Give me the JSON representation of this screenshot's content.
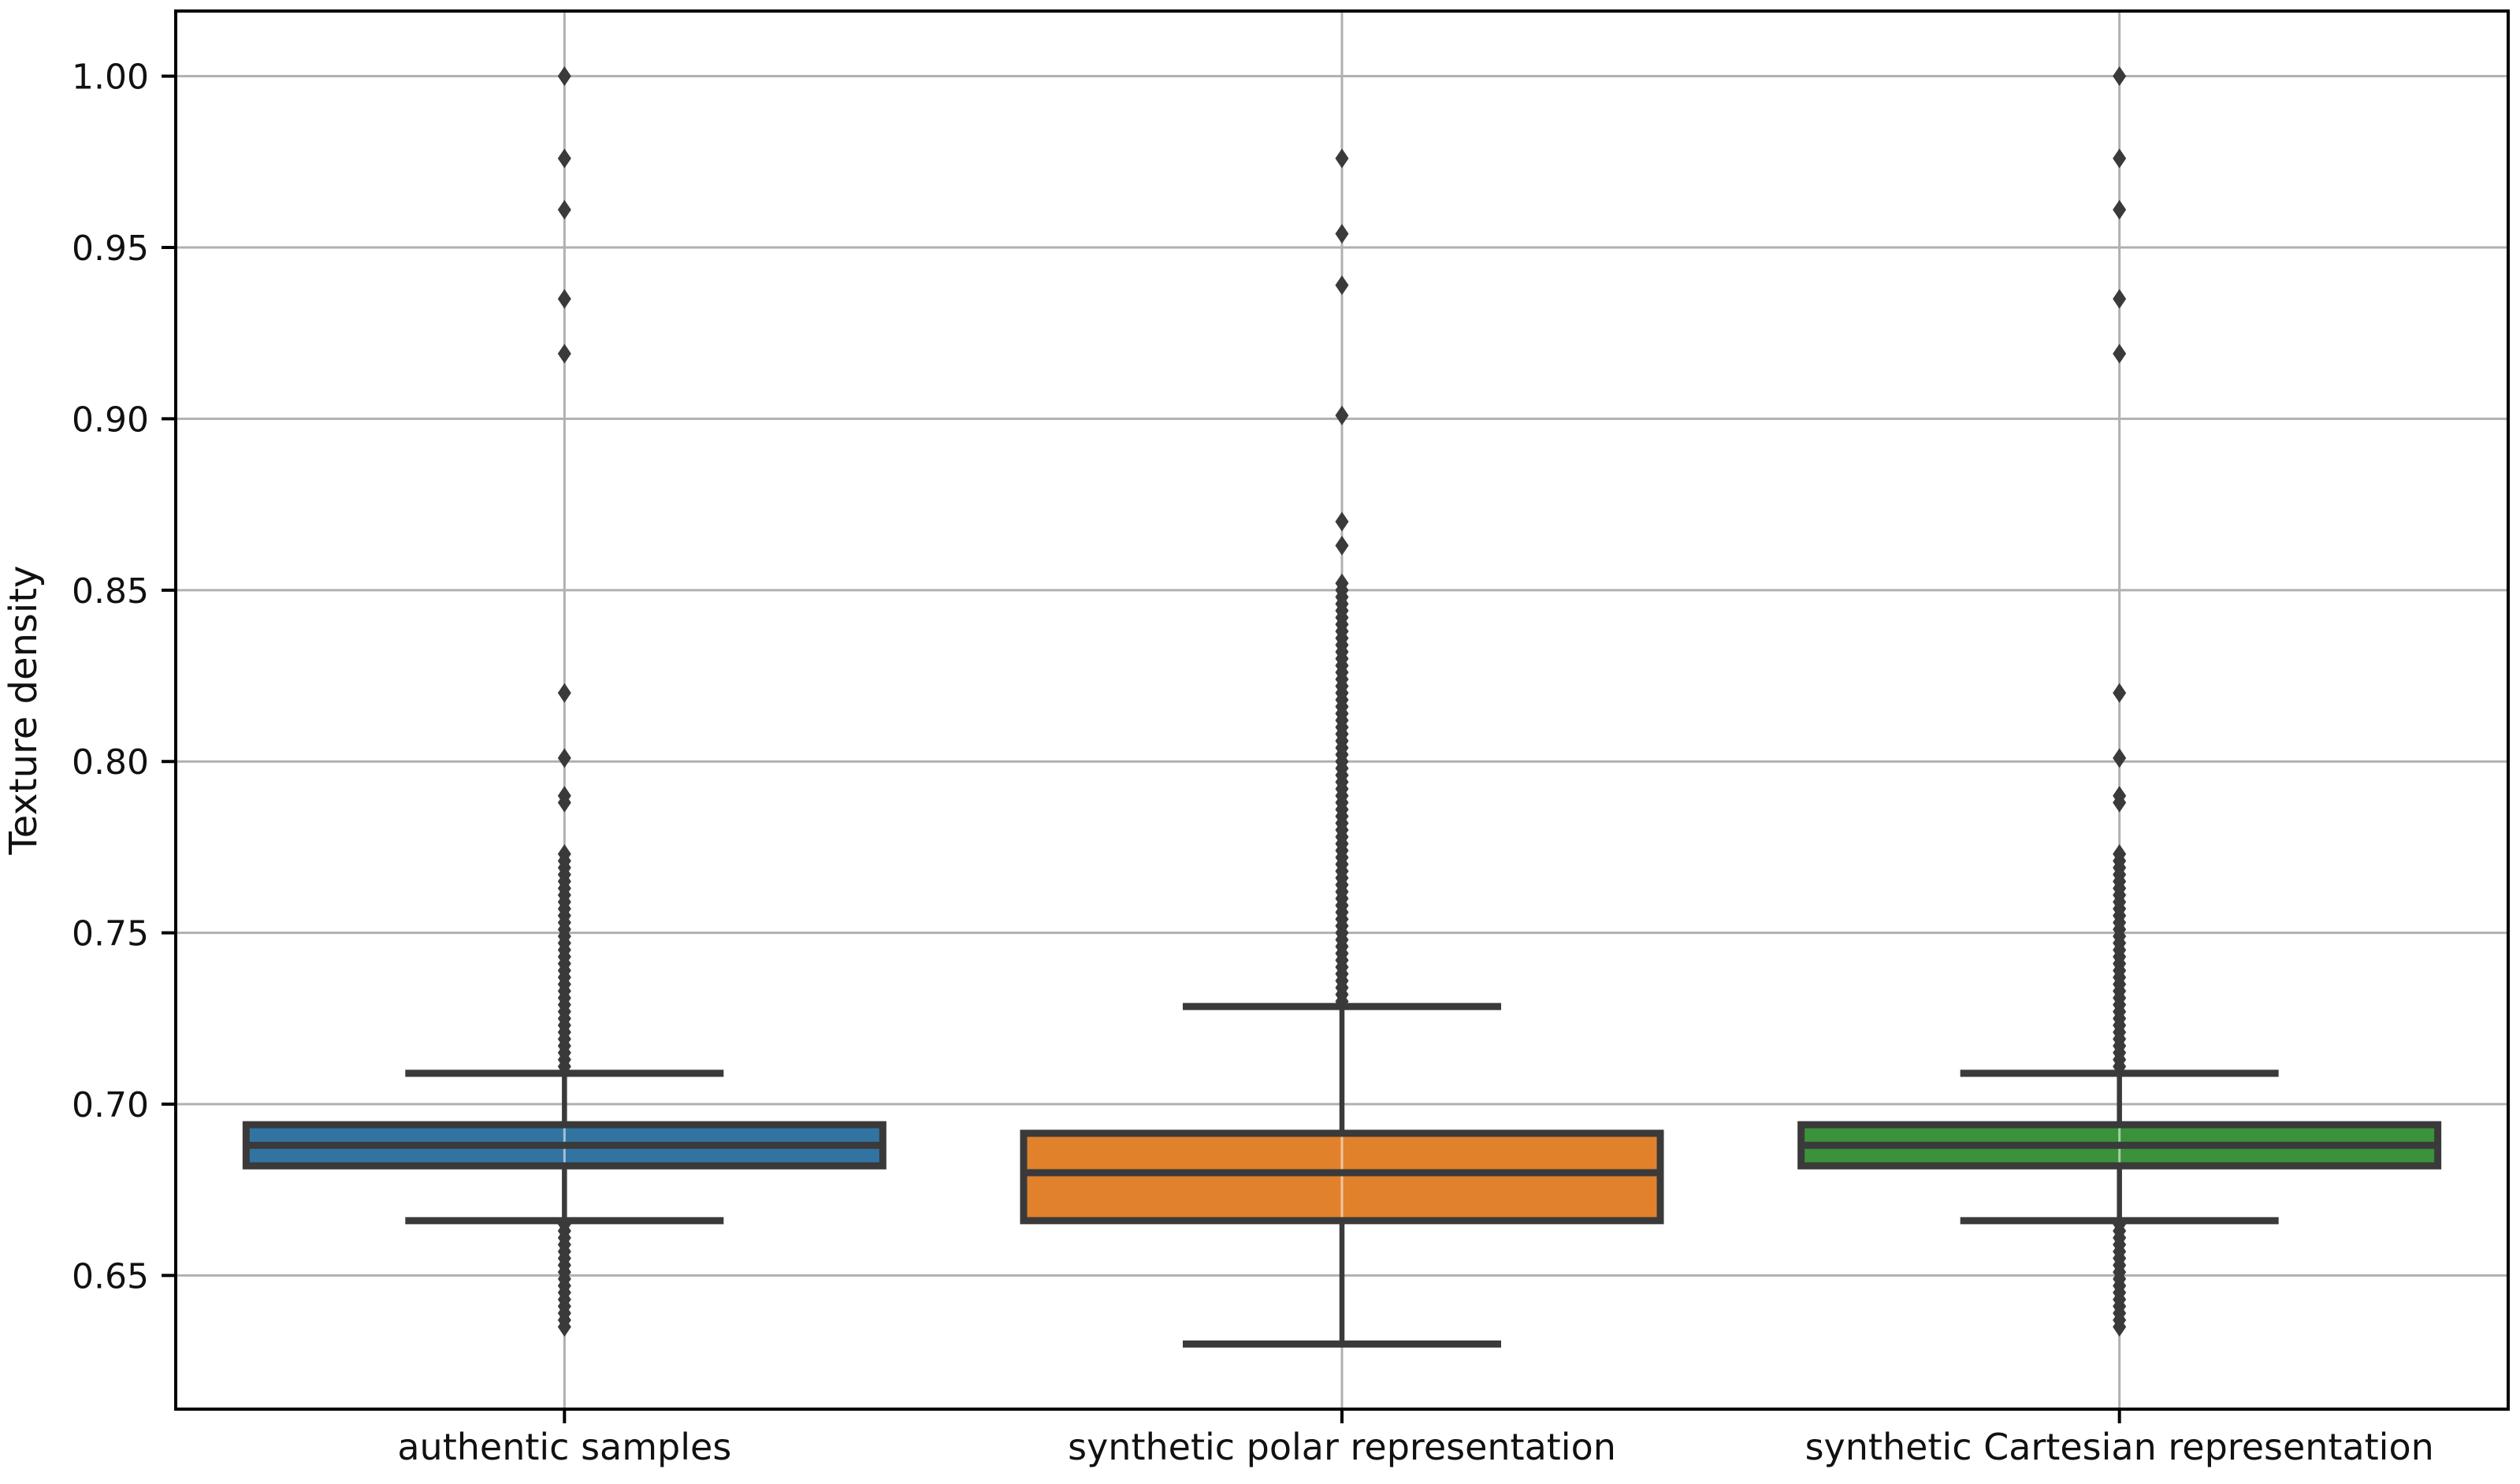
{
  "chart_data": {
    "type": "boxplot",
    "title": "",
    "xlabel": "",
    "ylabel": "Texture density",
    "ylim": [
      0.611,
      1.019
    ],
    "yticks": [
      0.65,
      0.7,
      0.75,
      0.8,
      0.85,
      0.9,
      0.95,
      1.0
    ],
    "ytick_labels": [
      "0.65",
      "0.70",
      "0.75",
      "0.80",
      "0.85",
      "0.90",
      "0.95",
      "1.00"
    ],
    "grid": "horizontal gridlines at yticks plus vertical gridline at each category center",
    "legend": "none",
    "marker": "diamond",
    "categories": [
      "authentic samples",
      "synthetic polar representation",
      "synthetic Cartesian representation"
    ],
    "style": {
      "background": "#ffffff",
      "frame_color": "#000000",
      "grid_color": "#b0b0b0",
      "element_color": "#3a3a3a",
      "text_color": "#111111",
      "box_center_gridline_overlay": "rgba(255,255,255,0.55)"
    },
    "series": [
      {
        "name": "authentic samples",
        "color": "#3274a1",
        "whisker_low": 0.666,
        "q1": 0.682,
        "median": 0.688,
        "q3": 0.694,
        "whisker_high": 0.709,
        "outliers_below": [
          0.635,
          0.637,
          0.639,
          0.641,
          0.643,
          0.645,
          0.647,
          0.649,
          0.651,
          0.653,
          0.655,
          0.657,
          0.659,
          0.661,
          0.663,
          0.665
        ],
        "outliers_above": [
          0.711,
          0.713,
          0.715,
          0.717,
          0.719,
          0.721,
          0.723,
          0.725,
          0.727,
          0.729,
          0.731,
          0.733,
          0.735,
          0.737,
          0.739,
          0.741,
          0.743,
          0.745,
          0.747,
          0.749,
          0.751,
          0.753,
          0.755,
          0.757,
          0.759,
          0.761,
          0.763,
          0.765,
          0.767,
          0.769,
          0.771,
          0.773,
          0.788,
          0.79,
          0.801,
          0.82,
          0.919,
          0.935,
          0.961,
          0.976,
          1.0
        ]
      },
      {
        "name": "synthetic polar representation",
        "color": "#e1812c",
        "whisker_low": 0.63,
        "q1": 0.666,
        "median": 0.68,
        "q3": 0.6915,
        "whisker_high": 0.7285,
        "outliers_below": [],
        "outliers_above": [
          0.73,
          0.732,
          0.734,
          0.736,
          0.738,
          0.74,
          0.742,
          0.744,
          0.746,
          0.748,
          0.75,
          0.752,
          0.754,
          0.756,
          0.758,
          0.76,
          0.762,
          0.764,
          0.766,
          0.768,
          0.77,
          0.772,
          0.774,
          0.776,
          0.778,
          0.78,
          0.782,
          0.784,
          0.786,
          0.788,
          0.79,
          0.792,
          0.794,
          0.796,
          0.798,
          0.8,
          0.802,
          0.804,
          0.806,
          0.808,
          0.81,
          0.812,
          0.814,
          0.816,
          0.818,
          0.82,
          0.822,
          0.824,
          0.826,
          0.828,
          0.83,
          0.832,
          0.834,
          0.836,
          0.838,
          0.84,
          0.842,
          0.844,
          0.846,
          0.848,
          0.85,
          0.852,
          0.863,
          0.87,
          0.901,
          0.939,
          0.954,
          0.976
        ]
      },
      {
        "name": "synthetic Cartesian representation",
        "color": "#3a923a",
        "whisker_low": 0.666,
        "q1": 0.682,
        "median": 0.688,
        "q3": 0.694,
        "whisker_high": 0.709,
        "outliers_below": [
          0.635,
          0.637,
          0.639,
          0.641,
          0.643,
          0.645,
          0.647,
          0.649,
          0.651,
          0.653,
          0.655,
          0.657,
          0.659,
          0.661,
          0.663,
          0.665
        ],
        "outliers_above": [
          0.711,
          0.713,
          0.715,
          0.717,
          0.719,
          0.721,
          0.723,
          0.725,
          0.727,
          0.729,
          0.731,
          0.733,
          0.735,
          0.737,
          0.739,
          0.741,
          0.743,
          0.745,
          0.747,
          0.749,
          0.751,
          0.753,
          0.755,
          0.757,
          0.759,
          0.761,
          0.763,
          0.765,
          0.767,
          0.769,
          0.771,
          0.773,
          0.788,
          0.79,
          0.801,
          0.82,
          0.919,
          0.935,
          0.961,
          0.976,
          1.0
        ]
      }
    ]
  }
}
